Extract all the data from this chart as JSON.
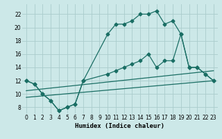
{
  "xlabel": "Humidex (Indice chaleur)",
  "bg_color": "#cce8e8",
  "grid_color": "#aacccc",
  "line_color": "#1a6e64",
  "xlim": [
    -0.5,
    23.5
  ],
  "ylim": [
    7,
    23.5
  ],
  "xticks": [
    0,
    1,
    2,
    3,
    4,
    5,
    6,
    7,
    8,
    9,
    10,
    11,
    12,
    13,
    14,
    15,
    16,
    17,
    18,
    19,
    20,
    21,
    22,
    23
  ],
  "yticks": [
    8,
    10,
    12,
    14,
    16,
    18,
    20,
    22
  ],
  "line1_x": [
    0,
    1,
    2,
    3,
    4,
    5,
    6,
    7,
    10,
    11,
    12,
    13,
    14,
    15,
    16,
    17,
    18,
    19,
    20,
    21,
    22,
    23
  ],
  "line1_y": [
    12,
    11.5,
    10,
    9,
    7.5,
    8,
    8.5,
    12,
    19,
    20.5,
    20.5,
    21,
    22,
    22,
    22.5,
    20.5,
    21,
    19,
    14,
    14,
    13,
    12
  ],
  "line2_x": [
    0,
    1,
    2,
    3,
    4,
    5,
    6,
    7,
    10,
    11,
    12,
    13,
    14,
    15,
    16,
    17,
    18,
    19,
    20,
    21,
    22,
    23
  ],
  "line2_y": [
    12,
    11.5,
    10,
    9,
    7.5,
    8,
    8.5,
    12,
    13,
    13.5,
    14,
    14.5,
    15,
    16,
    14,
    15,
    15,
    19,
    14,
    14,
    13,
    12
  ],
  "line3_x": [
    0,
    23
  ],
  "line3_y": [
    9.5,
    12.0
  ],
  "line4_x": [
    0,
    23
  ],
  "line4_y": [
    10.5,
    13.5
  ]
}
